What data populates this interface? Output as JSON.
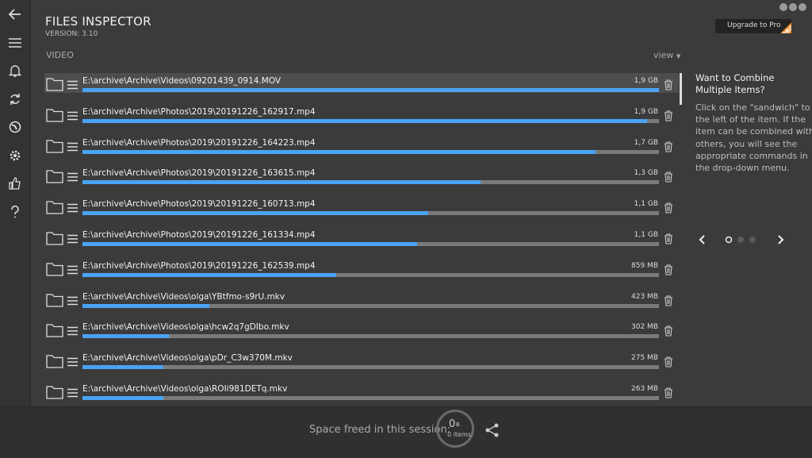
{
  "header": {
    "title": "FILES INSPECTOR",
    "version": "VERSION: 3.10",
    "upgrade": "Upgrade to Pro",
    "badge": "PRO"
  },
  "section": "VIDEO",
  "view": "view",
  "rows": [
    {
      "path": "E:\\archive\\Archive\\Videos\\09201439_0914.MOV",
      "size": "1,9 GB",
      "fill": 100
    },
    {
      "path": "E:\\archive\\Archive\\Photos\\2019\\20191226_162917.mp4",
      "size": "1,9 GB",
      "fill": 98
    },
    {
      "path": "E:\\archive\\Archive\\Photos\\2019\\20191226_164223.mp4",
      "size": "1,7 GB",
      "fill": 89
    },
    {
      "path": "E:\\archive\\Archive\\Photos\\2019\\20191226_163615.mp4",
      "size": "1,3 GB",
      "fill": 69
    },
    {
      "path": "E:\\archive\\Archive\\Photos\\2019\\20191226_160713.mp4",
      "size": "1,1 GB",
      "fill": 60
    },
    {
      "path": "E:\\archive\\Archive\\Photos\\2019\\20191226_161334.mp4",
      "size": "1,1 GB",
      "fill": 58
    },
    {
      "path": "E:\\archive\\Archive\\Photos\\2019\\20191226_162539.mp4",
      "size": "859 MB",
      "fill": 44
    },
    {
      "path": "E:\\archive\\Archive\\Videos\\olga\\YBtfmo-s9rU.mkv",
      "size": "423 MB",
      "fill": 22
    },
    {
      "path": "E:\\archive\\Archive\\Videos\\olga\\hcw2q7gDIbo.mkv",
      "size": "302 MB",
      "fill": 15
    },
    {
      "path": "E:\\archive\\Archive\\Videos\\olga\\pDr_C3w370M.mkv",
      "size": "275 MB",
      "fill": 14
    },
    {
      "path": "E:\\archive\\Archive\\Videos\\olga\\ROIi981DETq.mkv",
      "size": "263 MB",
      "fill": 14
    }
  ],
  "tip": {
    "title": "Want to Combine Multiple Items?",
    "body": "Click on the \"sandwich\" to the left of the item. If the item can be combined with others, you will see the appropriate commands in the drop-down menu."
  },
  "footer": {
    "label": "Space freed in this session:",
    "value": "0",
    "unit": "B",
    "items": "0 items"
  }
}
